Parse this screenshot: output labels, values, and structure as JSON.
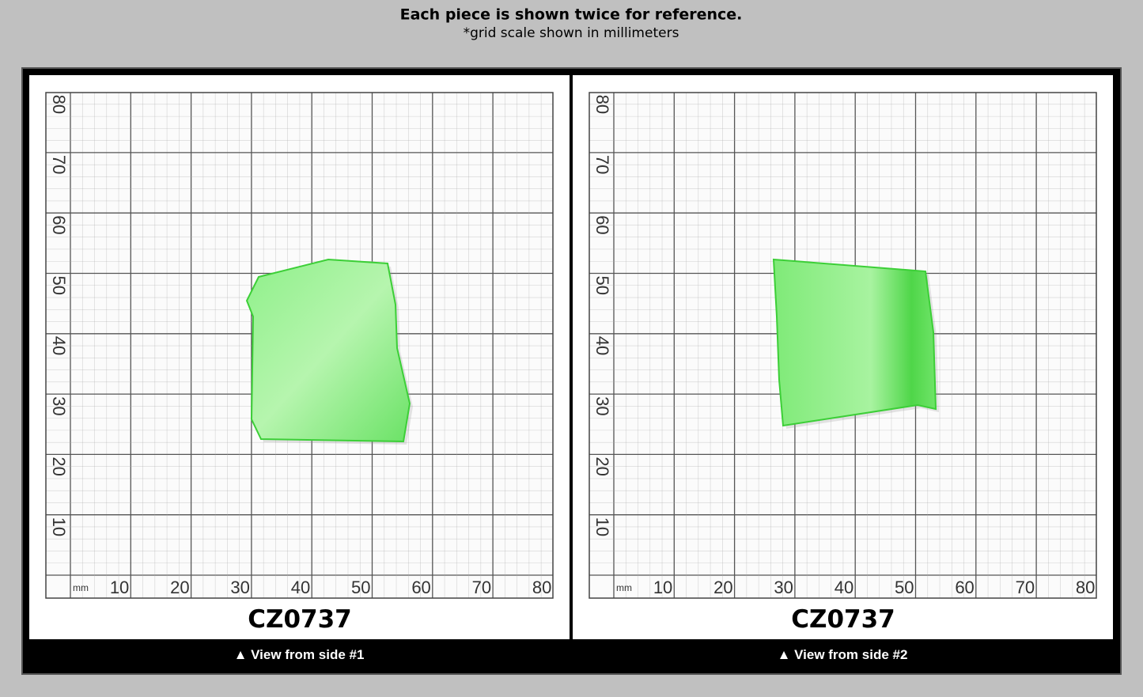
{
  "header": {
    "title": "Each piece is shown twice for reference.",
    "subtitle": "*grid scale shown in millimeters"
  },
  "panels": [
    {
      "code": "CZ0737",
      "caption": "▲ View from side #1",
      "unit": "mm",
      "x_labels": [
        "10",
        "20",
        "30",
        "40",
        "50",
        "60",
        "70",
        "80"
      ],
      "y_labels": [
        "10",
        "20",
        "30",
        "40",
        "50",
        "60",
        "70",
        "80"
      ]
    },
    {
      "code": "CZ0737",
      "caption": "▲ View from side #2",
      "unit": "mm",
      "x_labels": [
        "10",
        "20",
        "30",
        "40",
        "50",
        "60",
        "70",
        "80"
      ],
      "y_labels": [
        "10",
        "20",
        "30",
        "40",
        "50",
        "60",
        "70",
        "80"
      ]
    }
  ]
}
